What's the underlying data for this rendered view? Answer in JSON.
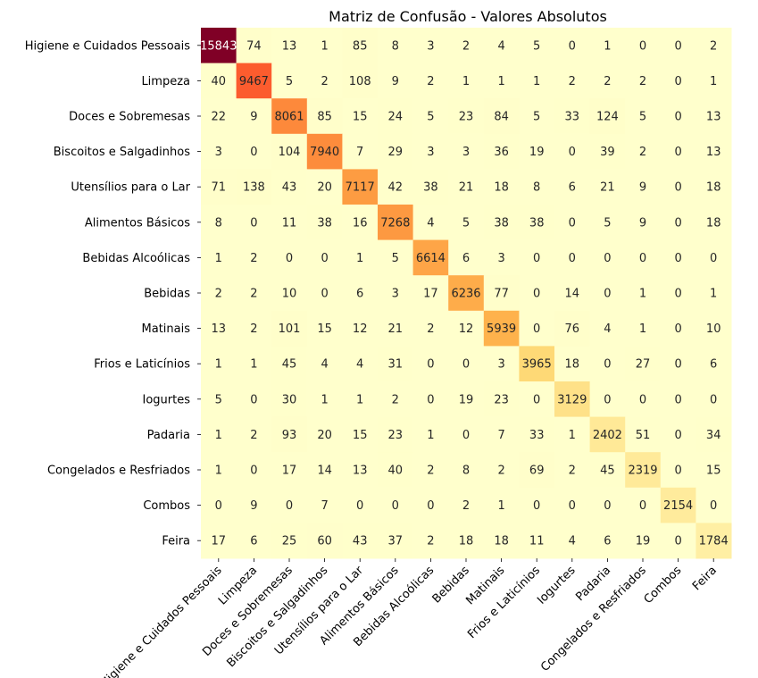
{
  "chart_data": {
    "type": "heatmap",
    "title": "Matriz de Confusão - Valores Absolutos",
    "xlabel": "",
    "ylabel": "",
    "colormap": "YlOrRd",
    "colorbar": false,
    "annotations": true,
    "row_labels": [
      "Higiene e Cuidados Pessoais",
      "Limpeza",
      "Doces e Sobremesas",
      "Biscoitos e Salgadinhos",
      "Utensílios para o Lar",
      "Alimentos Básicos",
      "Bebidas Alcoólicas",
      "Bebidas",
      "Matinais",
      "Frios e Laticínios",
      "Iogurtes",
      "Padaria",
      "Congelados e Resfriados",
      "Combos",
      "Feira"
    ],
    "col_labels": [
      "Higiene e Cuidados Pessoais",
      "Limpeza",
      "Doces e Sobremesas",
      "Biscoitos e Salgadinhos",
      "Utensílios para o Lar",
      "Alimentos Básicos",
      "Bebidas Alcoólicas",
      "Bebidas",
      "Matinais",
      "Frios e Laticínios",
      "Iogurtes",
      "Padaria",
      "Congelados e Resfriados",
      "Combos",
      "Feira"
    ],
    "values": [
      [
        15843,
        74,
        13,
        1,
        85,
        8,
        3,
        2,
        4,
        5,
        0,
        1,
        0,
        0,
        2
      ],
      [
        40,
        9467,
        5,
        2,
        108,
        9,
        2,
        1,
        1,
        1,
        2,
        2,
        2,
        0,
        1
      ],
      [
        22,
        9,
        8061,
        85,
        15,
        24,
        5,
        23,
        84,
        5,
        33,
        124,
        5,
        0,
        13
      ],
      [
        3,
        0,
        104,
        7940,
        7,
        29,
        3,
        3,
        36,
        19,
        0,
        39,
        2,
        0,
        13
      ],
      [
        71,
        138,
        43,
        20,
        7117,
        42,
        38,
        21,
        18,
        8,
        6,
        21,
        9,
        0,
        18
      ],
      [
        8,
        0,
        11,
        38,
        16,
        7268,
        4,
        5,
        38,
        38,
        0,
        5,
        9,
        0,
        18
      ],
      [
        1,
        2,
        0,
        0,
        1,
        5,
        6614,
        6,
        3,
        0,
        0,
        0,
        0,
        0,
        0
      ],
      [
        2,
        2,
        10,
        0,
        6,
        3,
        17,
        6236,
        77,
        0,
        14,
        0,
        1,
        0,
        1
      ],
      [
        13,
        2,
        101,
        15,
        12,
        21,
        2,
        12,
        5939,
        0,
        76,
        4,
        1,
        0,
        10
      ],
      [
        1,
        1,
        45,
        4,
        4,
        31,
        0,
        0,
        3,
        3965,
        18,
        0,
        27,
        0,
        6
      ],
      [
        5,
        0,
        30,
        1,
        1,
        2,
        0,
        19,
        23,
        0,
        3129,
        0,
        0,
        0,
        0
      ],
      [
        1,
        2,
        93,
        20,
        15,
        23,
        1,
        0,
        7,
        33,
        1,
        2402,
        51,
        0,
        34
      ],
      [
        1,
        0,
        17,
        14,
        13,
        40,
        2,
        8,
        2,
        69,
        2,
        45,
        2319,
        0,
        15
      ],
      [
        0,
        9,
        0,
        7,
        0,
        0,
        0,
        2,
        1,
        0,
        0,
        0,
        0,
        2154,
        0
      ],
      [
        17,
        6,
        25,
        60,
        43,
        37,
        2,
        18,
        18,
        11,
        4,
        6,
        19,
        0,
        1784
      ]
    ]
  }
}
